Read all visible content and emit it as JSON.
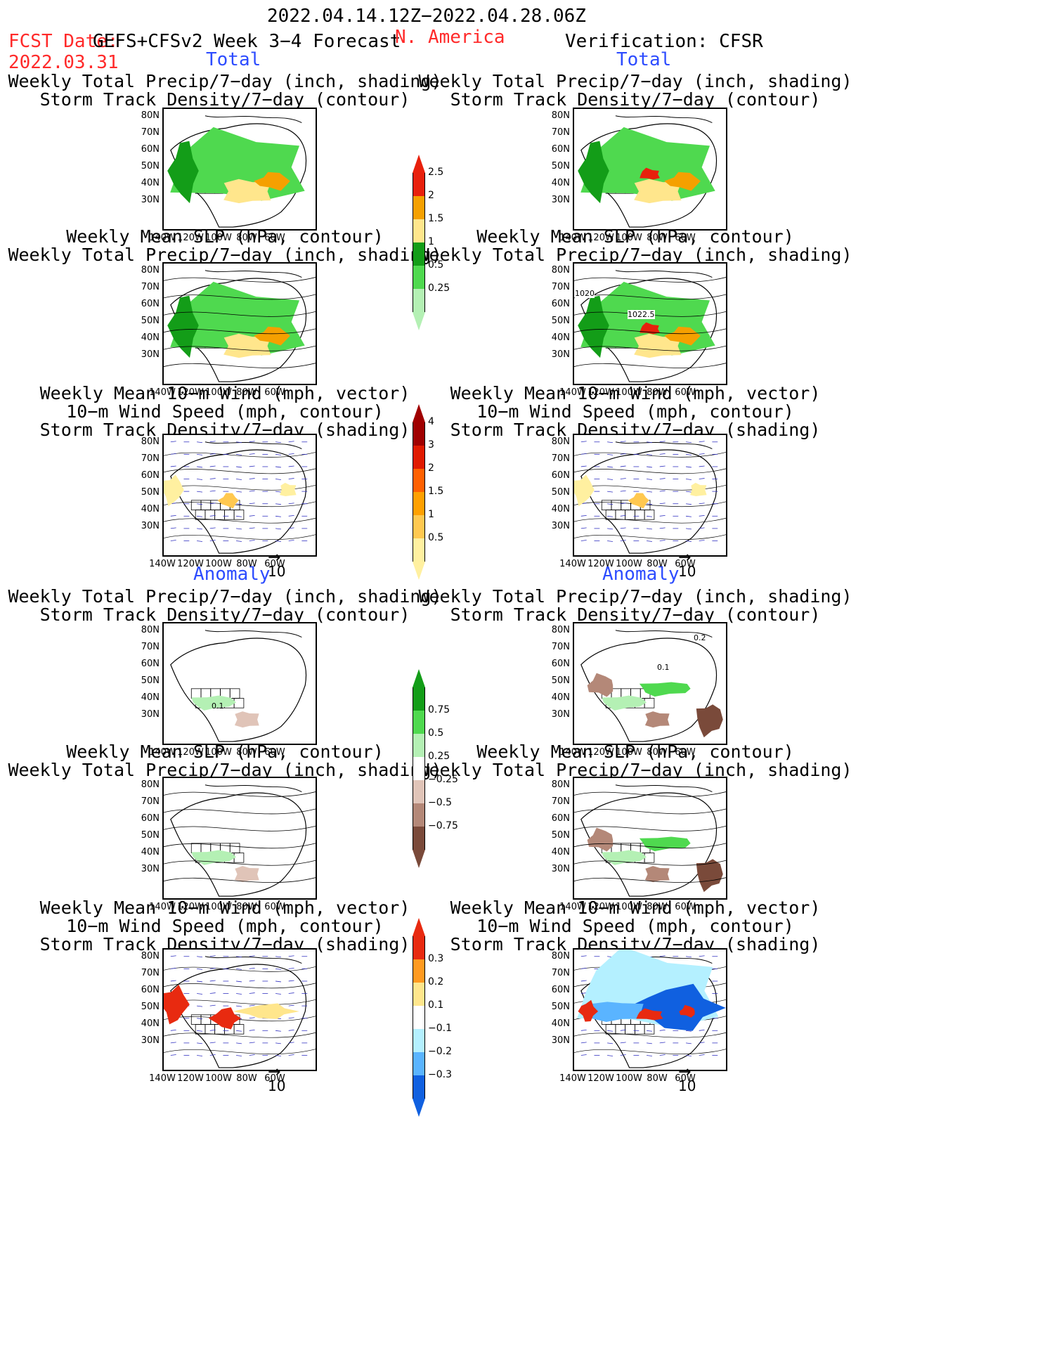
{
  "header": {
    "date_range": "2022.04.14.12Z−2022.04.28.06Z",
    "fcst_prefix": "FCST Date:",
    "forecast_title": "GEFS+CFSv2 Week 3−4 Forecast",
    "region": "N. America",
    "verification": "Verification: CFSR",
    "fcst_date": "2022.03.31"
  },
  "sections": {
    "total": "Total",
    "anomaly": "Anomaly"
  },
  "titles": {
    "precip_storm": [
      "Weekly Total Precip/7−day (inch, shading)",
      "Storm Track Density/7−day (contour)"
    ],
    "slp_precip": [
      "Weekly Mean SLP (hPa, contour)",
      "Weekly Total Precip/7−day (inch, shading)"
    ],
    "wind_storm": [
      "Weekly Mean 10−m Wind (mph, vector)",
      "10−m Wind Speed (mph, contour)",
      "Storm Track Density/7−day (shading)"
    ]
  },
  "axes": {
    "lat": [
      "80N",
      "70N",
      "60N",
      "50N",
      "40N",
      "30N"
    ],
    "lon": [
      "140W",
      "120W",
      "100W",
      "80W",
      "60W"
    ]
  },
  "vector_ref": "10",
  "contour_labels": {
    "slp_cfsr_1": "1020",
    "slp_cfsr_2": "1022.5",
    "anom_fcst": "0.1",
    "anom_cfsr_1": "0.1",
    "anom_cfsr_2": "0.2"
  },
  "colorbars": {
    "precip_total": {
      "labels": [
        "2.5",
        "2",
        "1.5",
        "1",
        "0.5",
        "0.25"
      ],
      "colors": [
        "#e8200c",
        "#f5a000",
        "#ffe68c",
        "#139d18",
        "#4fd94f",
        "#b4f0b4"
      ]
    },
    "storm_total": {
      "labels": [
        "4",
        "3",
        "2",
        "1.5",
        "1",
        "0.5"
      ],
      "colors": [
        "#a00000",
        "#e01a00",
        "#ff6000",
        "#ffa000",
        "#ffc850",
        "#fff0a0"
      ]
    },
    "precip_anom": {
      "labels": [
        "0.75",
        "0.5",
        "0.25",
        "−0.25",
        "−0.5",
        "−0.75"
      ],
      "colors": [
        "#139d18",
        "#4fd94f",
        "#b4f0b4",
        "#ffffff",
        "#e0c4b8",
        "#b48878",
        "#7a4a3a"
      ]
    },
    "storm_anom": {
      "labels": [
        "0.3",
        "0.2",
        "0.1",
        "−0.1",
        "−0.2",
        "−0.3"
      ],
      "colors": [
        "#e82a10",
        "#ff9a20",
        "#ffe68c",
        "#ffffff",
        "#b4f0ff",
        "#5ab4ff",
        "#1060e0"
      ]
    }
  }
}
